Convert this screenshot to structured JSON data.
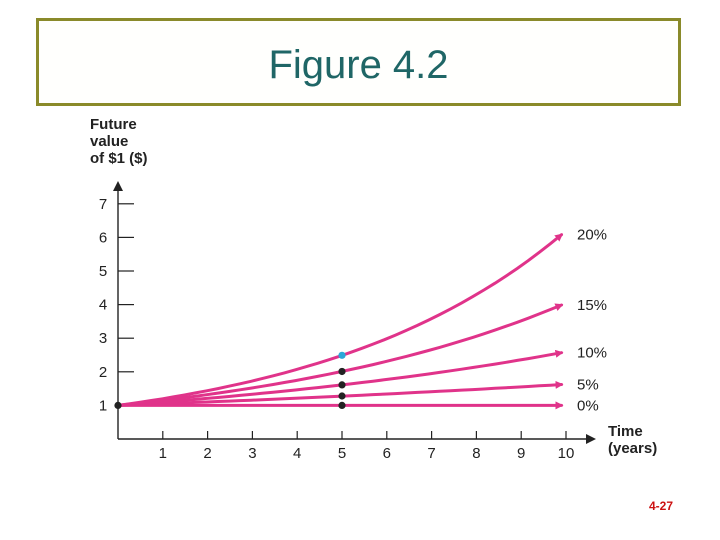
{
  "slide": {
    "title": "Figure 4.2",
    "page_number": "4-27"
  },
  "chart_data": {
    "type": "line",
    "ylabel_lines": [
      "Future",
      "value",
      "of $1 ($)"
    ],
    "xlabel_lines": [
      "Time",
      "(years)"
    ],
    "xlim": [
      0,
      10
    ],
    "ylim": [
      0,
      7
    ],
    "x_ticks": [
      1,
      2,
      3,
      4,
      5,
      6,
      7,
      8,
      9,
      10
    ],
    "y_ticks": [
      1,
      2,
      3,
      4,
      5,
      6,
      7
    ],
    "grid": false,
    "line_color": "#e0338a",
    "series": [
      {
        "name": "0%",
        "rate": 0.0,
        "y_end": 1.0
      },
      {
        "name": "5%",
        "rate": 0.05,
        "y_end": 1.63
      },
      {
        "name": "10%",
        "rate": 0.1,
        "y_end": 2.59
      },
      {
        "name": "15%",
        "rate": 0.15,
        "y_end": 4.05
      },
      {
        "name": "20%",
        "rate": 0.2,
        "y_end": 6.19
      }
    ],
    "markers": [
      {
        "x": 0,
        "y": 1.0,
        "color": "#222222"
      },
      {
        "x": 5,
        "y": 1.0,
        "color": "#222222"
      },
      {
        "x": 5,
        "y": 1.28,
        "color": "#222222"
      },
      {
        "x": 5,
        "y": 1.61,
        "color": "#222222"
      },
      {
        "x": 5,
        "y": 2.01,
        "color": "#222222"
      },
      {
        "x": 5,
        "y": 2.49,
        "color": "#2aa7d8"
      }
    ]
  }
}
